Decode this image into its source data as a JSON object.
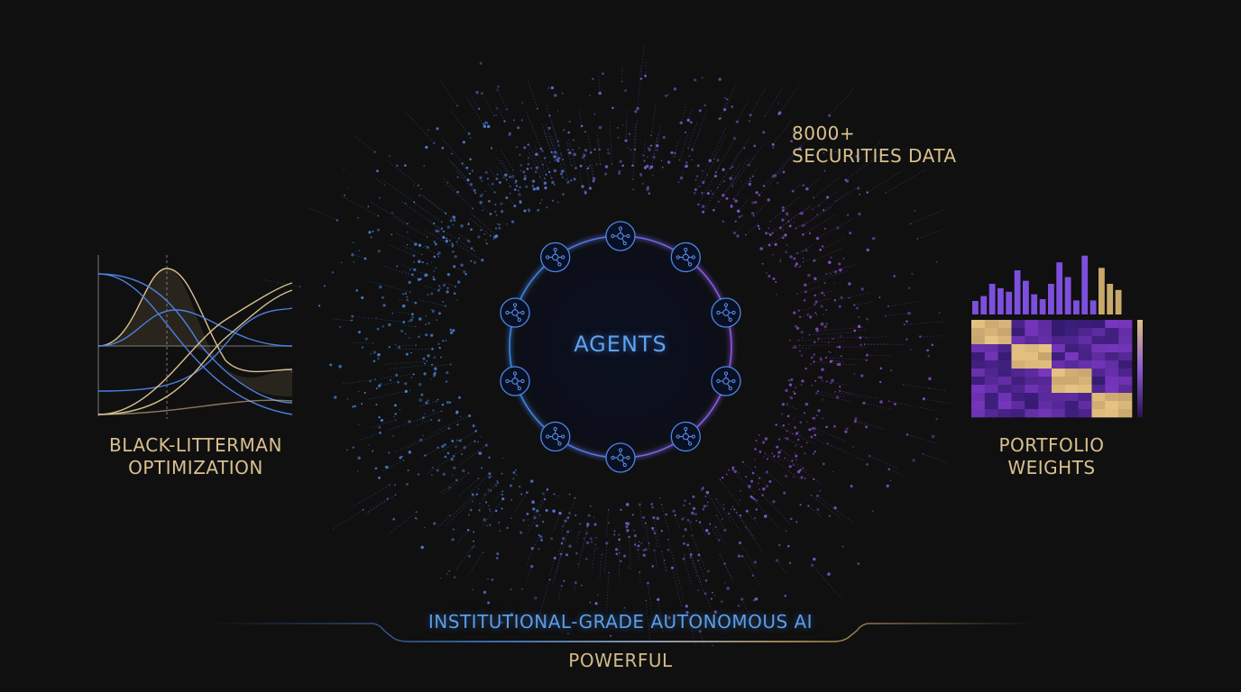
{
  "center": {
    "title": "AGENTS",
    "agent_count": 10,
    "agent_icon": "network-node-icon"
  },
  "left_panel": {
    "label_line1": "BLACK-LITTERMAN",
    "label_line2": "OPTIMIZATION",
    "graphic": "distribution-curves"
  },
  "right_panel": {
    "label_line1": "PORTFOLIO",
    "label_line2": "WEIGHTS",
    "graphic": "bar-histogram-and-covariance-heatmap"
  },
  "top_right_label": {
    "line1": "8000+",
    "line2": "SECURITIES DATA"
  },
  "footer": {
    "tagline": "INSTITUTIONAL-GRADE AUTONOMOUS AI",
    "subtagline": "POWERFUL"
  },
  "colors": {
    "background": "#101010",
    "gold": "#d9c08f",
    "blue": "#5fa2ee",
    "purple": "#7a4bd0"
  },
  "weights_bars": [
    0.22,
    0.3,
    0.5,
    0.43,
    0.37,
    0.72,
    0.55,
    0.33,
    0.25,
    0.5,
    0.85,
    0.61,
    0.23,
    0.96,
    0.23,
    0.76,
    0.5,
    0.4
  ],
  "weights_bar_gold_from_index": 15
}
